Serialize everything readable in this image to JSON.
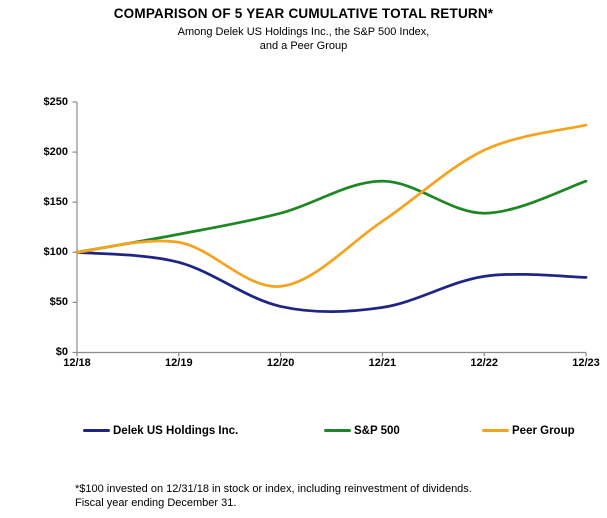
{
  "header": {
    "title": "COMPARISON OF 5 YEAR CUMULATIVE TOTAL RETURN*",
    "subtitle_line1": "Among Delek US Holdings Inc., the S&P 500 Index,",
    "subtitle_line2": "and a Peer Group"
  },
  "footnote": {
    "line1": "*$100 invested on 12/31/18 in stock or index, including reinvestment of dividends.",
    "line2": "Fiscal year ending December 31."
  },
  "chart_data": {
    "type": "line",
    "smoothed": true,
    "grid": false,
    "legend_position": "bottom",
    "title": "COMPARISON OF 5 YEAR CUMULATIVE TOTAL RETURN*",
    "xlabel": "",
    "ylabel": "",
    "categories": [
      "12/18",
      "12/19",
      "12/20",
      "12/21",
      "12/22",
      "12/23"
    ],
    "series": [
      {
        "name": "Delek US Holdings Inc.",
        "color": "#1F2585",
        "values": [
          100,
          90,
          46,
          45,
          76,
          75
        ]
      },
      {
        "name": "S&P 500",
        "color": "#1E8725",
        "values": [
          100,
          118,
          139,
          171,
          139,
          171
        ]
      },
      {
        "name": "Peer Group",
        "color": "#F6A41F",
        "values": [
          100,
          110,
          66,
          131,
          202,
          227
        ]
      }
    ],
    "ylim": [
      0,
      250
    ],
    "ytick_step": 50,
    "ytick_labels": [
      "$0",
      "$50",
      "$100",
      "$150",
      "$200",
      "$250"
    ],
    "axis_color": "#8C8C8C"
  }
}
